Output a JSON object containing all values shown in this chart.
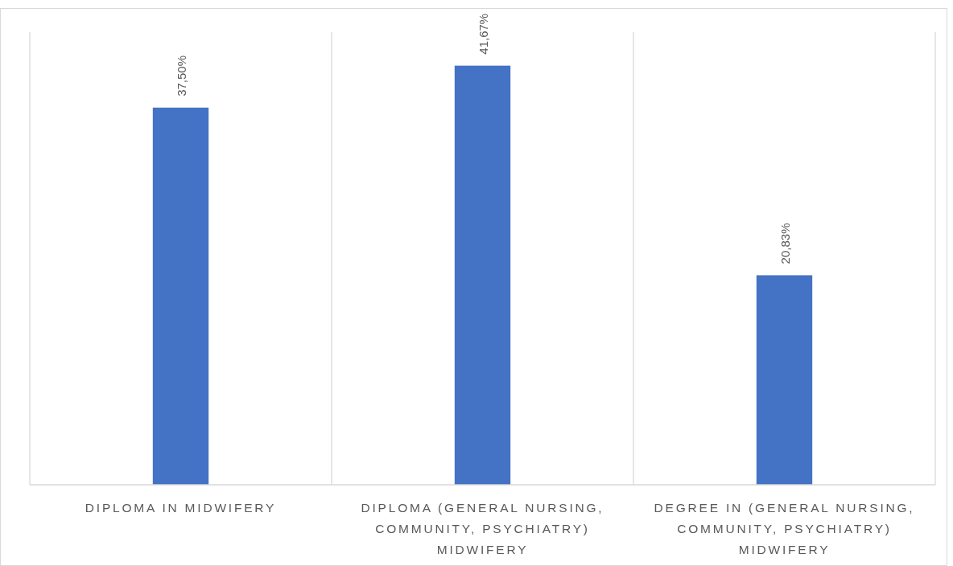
{
  "chart_data": {
    "type": "bar",
    "categories": [
      "DIPLOMA IN MIDWIFERY",
      "DIPLOMA (GENERAL NURSING, COMMUNITY, PSYCHIATRY) MIDWIFERY",
      "DEGREE IN (GENERAL NURSING, COMMUNITY, PSYCHIATRY) MIDWIFERY"
    ],
    "values": [
      37.5,
      41.67,
      20.83
    ],
    "value_labels": [
      "37,50%",
      "41,67%",
      "20,83%"
    ],
    "color": "#4472c4",
    "ylim": [
      0,
      45
    ],
    "tick_labels": "x",
    "grid": "x"
  }
}
